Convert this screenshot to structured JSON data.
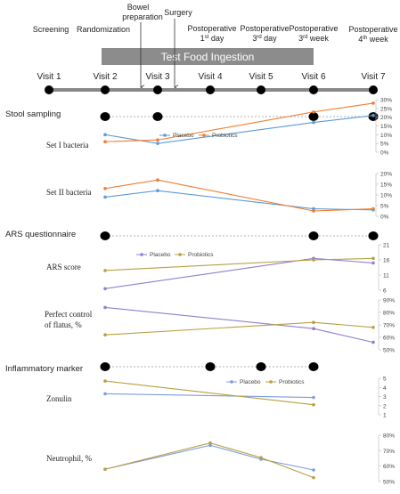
{
  "timeline": {
    "phases": [
      "Screening",
      "Randomization",
      "Test Food Ingestion",
      "Postoperative 1st day",
      "Postoperative 3rd day",
      "Postoperative 3rd week",
      "Postoperative 4th week"
    ],
    "phase_labels": {
      "screening": "Screening",
      "randomization": "Randomization",
      "bowel_line1": "Bowel",
      "bowel_line2": "preparation",
      "surgery": "Surgery",
      "po1_line1": "Postoperative",
      "po1_line2a": "1",
      "po1_sup": "st",
      "po1_line2b": " day",
      "po3_line1": "Postoperative",
      "po3_line2a": "3",
      "po3_sup": "rd",
      "po3_line2b": " day",
      "po3w_line1": "Postoperative",
      "po3w_line2a": "3",
      "po3w_sup": "rd",
      "po3w_line2b": " week",
      "po4w_line1": "Postoperative",
      "po4w_line2a": "4",
      "po4w_sup": "th",
      "po4w_line2b": " week"
    },
    "ingestion_bar": "Test Food Ingestion",
    "visits": [
      "Visit 1",
      "Visit 2",
      "Visit 3",
      "Visit 4",
      "Visit 5",
      "Visit 6",
      "Visit 7"
    ]
  },
  "sections": {
    "stool": "Stool sampling",
    "ars": "ARS questionnaire",
    "inflammatory": "Inflammatory marker"
  },
  "legends": {
    "placebo": "Placebo",
    "probiotics": "Probiotics"
  },
  "colors": {
    "placebo_stool": "#5b9bd5",
    "probiotics_stool": "#ed7d31",
    "placebo_ars": "#8f7fcf",
    "probiotics_ars": "#b8a040",
    "placebo_inflam": "#7b9be0",
    "probiotics_inflam": "#b8a040",
    "bar_fill": "#8c8c8c",
    "timeline_line": "#888888"
  },
  "chart_data": [
    {
      "type": "line",
      "title": "Set I bacteria",
      "ylabel": "Set I bacteria",
      "yticks": [
        "0%",
        "5%",
        "10%",
        "15%",
        "20%",
        "25%",
        "30%"
      ],
      "ylim": [
        0,
        30
      ],
      "x": [
        "Visit 2",
        "Visit 3",
        "Visit 6",
        "Visit 7"
      ],
      "series": [
        {
          "name": "Placebo",
          "values": [
            10,
            5,
            17,
            21
          ]
        },
        {
          "name": "Probiotics",
          "values": [
            6,
            7,
            23,
            28
          ]
        }
      ]
    },
    {
      "type": "line",
      "title": "Set II bacteria",
      "ylabel": "Set II bacteria",
      "yticks": [
        "0%",
        "5%",
        "10%",
        "15%",
        "20%"
      ],
      "ylim": [
        0,
        20
      ],
      "x": [
        "Visit 2",
        "Visit 3",
        "Visit 6",
        "Visit 7"
      ],
      "series": [
        {
          "name": "Placebo",
          "values": [
            9,
            12,
            3.5,
            3
          ]
        },
        {
          "name": "Probiotics",
          "values": [
            13,
            17,
            2.5,
            3.5
          ]
        }
      ]
    },
    {
      "type": "line",
      "title": "ARS score",
      "ylabel": "ARS score",
      "yticks": [
        "6",
        "11",
        "16",
        "21"
      ],
      "ylim": [
        6,
        21
      ],
      "x": [
        "Visit 2",
        "Visit 6",
        "Visit 7"
      ],
      "series": [
        {
          "name": "Placebo",
          "values": [
            6.5,
            16.5,
            15
          ]
        },
        {
          "name": "Probiotics",
          "values": [
            12.5,
            16,
            16.5
          ]
        }
      ]
    },
    {
      "type": "line",
      "title": "Perfect control of flatus, %",
      "ylabel": "Perfect control of flatus, %",
      "yticks": [
        "50%",
        "60%",
        "70%",
        "80%",
        "90%"
      ],
      "ylim": [
        50,
        90
      ],
      "x": [
        "Visit 2",
        "Visit 6",
        "Visit 7"
      ],
      "series": [
        {
          "name": "Placebo",
          "values": [
            84,
            67,
            56
          ]
        },
        {
          "name": "Probiotics",
          "values": [
            62,
            72,
            68
          ]
        }
      ]
    },
    {
      "type": "line",
      "title": "Zonulin",
      "ylabel": "Zonulin",
      "yticks": [
        "1",
        "2",
        "3",
        "4",
        "5"
      ],
      "ylim": [
        1,
        5
      ],
      "x": [
        "Visit 2",
        "Visit 6"
      ],
      "series": [
        {
          "name": "Placebo",
          "values": [
            3.3,
            2.9
          ]
        },
        {
          "name": "Probiotics",
          "values": [
            4.7,
            2.1
          ]
        }
      ]
    },
    {
      "type": "line",
      "title": "Neutrophil, %",
      "ylabel": "Neutrophil, %",
      "yticks": [
        "50%",
        "60%",
        "70%",
        "80%"
      ],
      "ylim": [
        50,
        80
      ],
      "x": [
        "Visit 2",
        "Visit 4",
        "Visit 5",
        "Visit 6"
      ],
      "series": [
        {
          "name": "Placebo",
          "values": [
            58,
            73.5,
            64.5,
            57.5
          ]
        },
        {
          "name": "Probiotics",
          "values": [
            58,
            75,
            65.5,
            52.5
          ]
        }
      ]
    }
  ]
}
